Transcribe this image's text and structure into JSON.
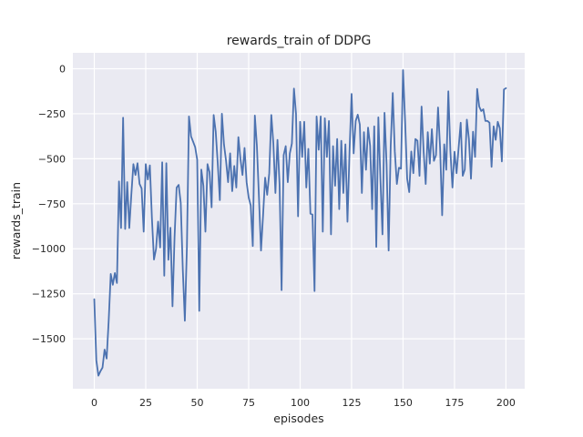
{
  "figure": {
    "title": "rewards_train of DDPG",
    "background": "#ffffff"
  },
  "colors": {
    "plot_background": "#EAEAF2",
    "gridline": "#ffffff",
    "line": "#4C72B0",
    "text": "#262626"
  },
  "chart_data": {
    "type": "line",
    "title": "rewards_train of DDPG",
    "xlabel": "episodes",
    "ylabel": "rewards_train",
    "legend": "none",
    "grid": "on",
    "xlim": [
      -10.4,
      209.1
    ],
    "ylim": [
      -1777.6,
      88.5
    ],
    "xticks": [
      0,
      25,
      50,
      75,
      100,
      125,
      150,
      175,
      200
    ],
    "xtick_labels": [
      "0",
      "25",
      "50",
      "75",
      "100",
      "125",
      "150",
      "175",
      "200"
    ],
    "yticks": [
      0,
      -250,
      -500,
      -750,
      -1000,
      -1250,
      -1500
    ],
    "ytick_labels": [
      "0",
      "−250",
      "−500",
      "−750",
      "−1000",
      "−1250",
      "−1500"
    ],
    "x_start": 0,
    "x_step": 1,
    "series": [
      {
        "name": "rewards_train",
        "values": [
          -1280,
          -1620,
          -1705,
          -1680,
          -1660,
          -1560,
          -1610,
          -1400,
          -1140,
          -1200,
          -1135,
          -1190,
          -626,
          -885,
          -272,
          -890,
          -630,
          -885,
          -700,
          -530,
          -590,
          -525,
          -640,
          -665,
          -905,
          -530,
          -615,
          -537,
          -830,
          -1060,
          -1001,
          -849,
          -993,
          -520,
          -1150,
          -525,
          -1061,
          -883,
          -1320,
          -934,
          -660,
          -645,
          -745,
          -1115,
          -1400,
          -990,
          -265,
          -375,
          -405,
          -435,
          -505,
          -1345,
          -560,
          -650,
          -905,
          -530,
          -575,
          -770,
          -257,
          -350,
          -530,
          -730,
          -250,
          -420,
          -510,
          -630,
          -470,
          -680,
          -540,
          -660,
          -380,
          -500,
          -590,
          -440,
          -630,
          -715,
          -760,
          -985,
          -260,
          -430,
          -715,
          -1010,
          -815,
          -605,
          -700,
          -580,
          -257,
          -415,
          -690,
          -395,
          -640,
          -1230,
          -480,
          -430,
          -630,
          -470,
          -415,
          -110,
          -250,
          -820,
          -295,
          -490,
          -295,
          -660,
          -445,
          -805,
          -810,
          -1235,
          -265,
          -450,
          -265,
          -905,
          -275,
          -490,
          -290,
          -920,
          -430,
          -650,
          -390,
          -780,
          -400,
          -690,
          -420,
          -850,
          -460,
          -140,
          -470,
          -290,
          -255,
          -310,
          -690,
          -352,
          -561,
          -327,
          -428,
          -780,
          -320,
          -990,
          -270,
          -610,
          -920,
          -245,
          -530,
          -1010,
          -430,
          -135,
          -460,
          -640,
          -550,
          -555,
          -8,
          -290,
          -610,
          -685,
          -460,
          -580,
          -390,
          -400,
          -595,
          -210,
          -460,
          -640,
          -352,
          -527,
          -336,
          -512,
          -480,
          -215,
          -440,
          -814,
          -420,
          -561,
          -125,
          -460,
          -660,
          -461,
          -580,
          -440,
          -300,
          -595,
          -560,
          -283,
          -390,
          -611,
          -350,
          -490,
          -112,
          -210,
          -235,
          -225,
          -290,
          -290,
          -300,
          -545,
          -320,
          -395,
          -295,
          -330,
          -515,
          -115,
          -108
        ]
      }
    ]
  }
}
